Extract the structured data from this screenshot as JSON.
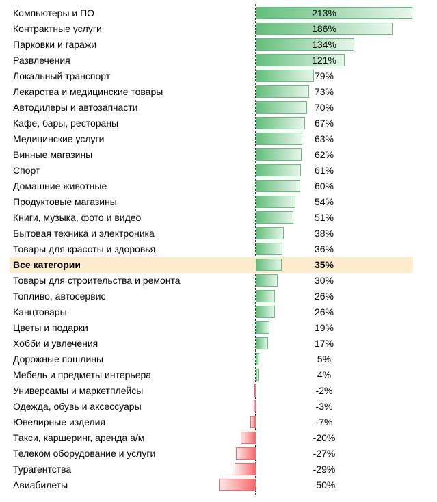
{
  "chart_data": {
    "type": "bar",
    "orientation": "horizontal",
    "categories": [
      "Компьютеры и ПО",
      "Контрактные услуги",
      "Парковки и гаражи",
      "Развлечения",
      "Локальный транспорт",
      "Лекарства и медицинские товары",
      "Автодилеры и автозапчасти",
      "Кафе, бары, рестораны",
      "Медицинские услуги",
      "Винные магазины",
      "Спорт",
      "Домашние животные",
      "Продуктовые магазины",
      "Книги, музыка, фото и видео",
      "Бытовая техника и электроника",
      "Товары для красоты и здоровья",
      "Все категории",
      "Товары для строительства и ремонта",
      "Топливо, автосервис",
      "Канцтовары",
      "Цветы и подарки",
      "Хобби и увлечения",
      "Дорожные пошлины",
      "Мебель и предметы интерьера",
      "Универсамы и маркетплейсы",
      "Одежда, обувь и аксессуары",
      "Ювелирные изделия",
      "Такси, каршеринг, аренда а/м",
      "Телеком оборудование и услуги",
      "Турагентства",
      "Авиабилеты"
    ],
    "values": [
      213,
      186,
      134,
      121,
      79,
      73,
      70,
      67,
      63,
      62,
      61,
      60,
      54,
      51,
      38,
      36,
      35,
      30,
      26,
      26,
      19,
      17,
      5,
      4,
      -2,
      -3,
      -7,
      -20,
      -27,
      -29,
      -50
    ],
    "labels": [
      "213%",
      "186%",
      "134%",
      "121%",
      "79%",
      "73%",
      "70%",
      "67%",
      "63%",
      "62%",
      "61%",
      "60%",
      "54%",
      "51%",
      "38%",
      "36%",
      "35%",
      "30%",
      "26%",
      "26%",
      "19%",
      "17%",
      "5%",
      "4%",
      "-2%",
      "-3%",
      "-7%",
      "-20%",
      "-27%",
      "-29%",
      "-50%"
    ],
    "highlight_category": "Все категории",
    "colors": {
      "positive": "#63be7b",
      "negative": "#f8696b",
      "highlight": "#fdeccb"
    }
  }
}
